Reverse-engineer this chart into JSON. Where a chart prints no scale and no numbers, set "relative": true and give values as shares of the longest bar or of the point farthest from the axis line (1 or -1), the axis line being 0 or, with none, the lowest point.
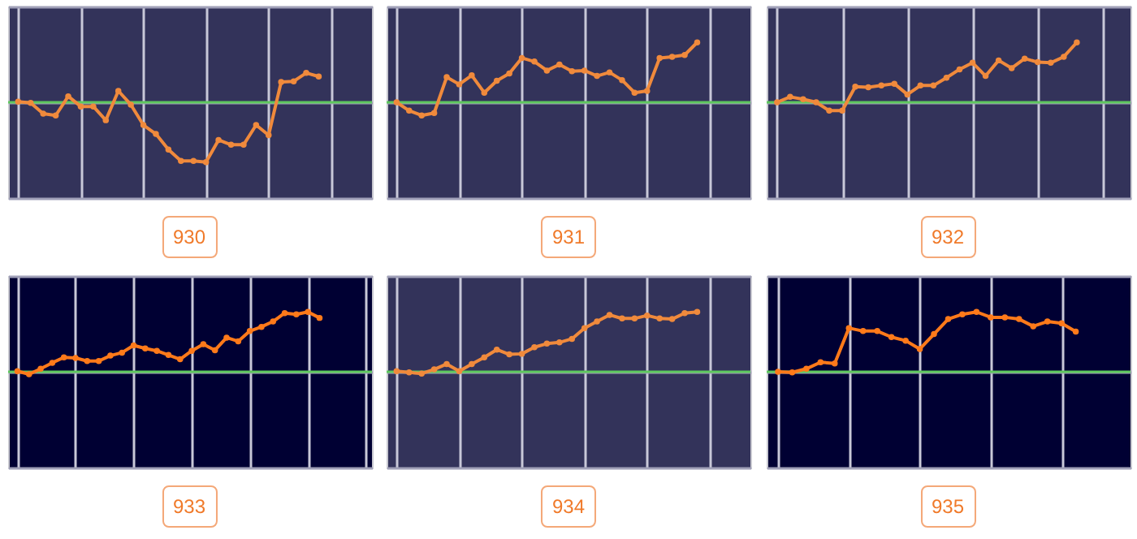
{
  "chart_data": [
    {
      "type": "line",
      "title": "930",
      "relative": true,
      "grid": true,
      "marker": "circle",
      "categories": [
        null,
        null,
        null,
        null,
        null,
        null,
        null,
        null,
        null,
        null,
        null,
        null,
        null,
        null,
        null,
        null,
        null,
        null,
        null,
        null,
        null,
        null,
        null,
        null,
        null
      ],
      "ref_lines": [
        {
          "axis": "y",
          "value": 0,
          "color": "#5ec85e"
        }
      ],
      "series": [
        {
          "color": "#f08a3c",
          "values": [
            0.01,
            -0.01,
            -0.19,
            -0.22,
            0.1,
            -0.07,
            -0.07,
            -0.3,
            0.19,
            -0.04,
            -0.38,
            -0.53,
            -0.79,
            -0.98,
            -0.98,
            -1,
            -0.63,
            -0.71,
            -0.71,
            -0.38,
            -0.55,
            0.34,
            0.35,
            0.49,
            0.43
          ]
        }
      ]
    },
    {
      "type": "line",
      "title": "931",
      "relative": true,
      "grid": true,
      "marker": "circle",
      "categories": [
        null,
        null,
        null,
        null,
        null,
        null,
        null,
        null,
        null,
        null,
        null,
        null,
        null,
        null,
        null,
        null,
        null,
        null,
        null,
        null,
        null,
        null,
        null,
        null,
        null
      ],
      "ref_lines": [
        {
          "axis": "y",
          "value": 0,
          "color": "#5ec85e"
        }
      ],
      "series": [
        {
          "color": "#f08a3c",
          "values": [
            0,
            -0.14,
            -0.22,
            -0.18,
            0.42,
            0.3,
            0.45,
            0.16,
            0.36,
            0.48,
            0.74,
            0.68,
            0.53,
            0.63,
            0.52,
            0.53,
            0.44,
            0.5,
            0.37,
            0.16,
            0.19,
            0.74,
            0.76,
            0.79,
            1
          ]
        }
      ]
    },
    {
      "type": "line",
      "title": "932",
      "relative": true,
      "grid": true,
      "marker": "circle",
      "categories": [
        null,
        null,
        null,
        null,
        null,
        null,
        null,
        null,
        null,
        null,
        null,
        null,
        null,
        null,
        null,
        null,
        null,
        null,
        null,
        null,
        null,
        null,
        null,
        null
      ],
      "ref_lines": [
        {
          "axis": "y",
          "value": 0,
          "color": "#5ec85e"
        }
      ],
      "series": [
        {
          "color": "#f08a3c",
          "values": [
            0,
            0.09,
            0.05,
            0,
            -0.14,
            -0.14,
            0.26,
            0.25,
            0.28,
            0.31,
            0.13,
            0.28,
            0.28,
            0.41,
            0.55,
            0.66,
            0.44,
            0.7,
            0.57,
            0.73,
            0.67,
            0.66,
            0.76,
            1
          ]
        }
      ]
    },
    {
      "type": "line",
      "title": "933",
      "relative": true,
      "grid": true,
      "marker": "circle",
      "categories": [
        null,
        null,
        null,
        null,
        null,
        null,
        null,
        null,
        null,
        null,
        null,
        null,
        null,
        null,
        null,
        null,
        null,
        null,
        null,
        null,
        null,
        null,
        null,
        null,
        null,
        null,
        null
      ],
      "ref_lines": [
        {
          "axis": "y",
          "value": 0,
          "color": "#5ec85e"
        }
      ],
      "series": [
        {
          "color": "#ff7a1a",
          "values": [
            0.01,
            -0.04,
            0.05,
            0.15,
            0.24,
            0.23,
            0.18,
            0.18,
            0.27,
            0.32,
            0.44,
            0.39,
            0.35,
            0.28,
            0.21,
            0.35,
            0.46,
            0.36,
            0.57,
            0.51,
            0.68,
            0.75,
            0.84,
            0.98,
            0.96,
            1,
            0.9
          ]
        }
      ]
    },
    {
      "type": "line",
      "title": "934",
      "relative": true,
      "grid": true,
      "marker": "circle",
      "categories": [
        null,
        null,
        null,
        null,
        null,
        null,
        null,
        null,
        null,
        null,
        null,
        null,
        null,
        null,
        null,
        null,
        null,
        null,
        null,
        null,
        null,
        null,
        null,
        null,
        null
      ],
      "ref_lines": [
        {
          "axis": "y",
          "value": 0,
          "color": "#5ec85e"
        }
      ],
      "series": [
        {
          "color": "#f08a3c",
          "values": [
            0.01,
            -0.01,
            -0.03,
            0.04,
            0.13,
            0.01,
            0.13,
            0.24,
            0.37,
            0.29,
            0.3,
            0.41,
            0.47,
            0.49,
            0.55,
            0.73,
            0.84,
            0.95,
            0.89,
            0.89,
            0.94,
            0.89,
            0.88,
            0.98,
            1
          ]
        }
      ]
    },
    {
      "type": "line",
      "title": "935",
      "relative": true,
      "grid": true,
      "marker": "circle",
      "categories": [
        null,
        null,
        null,
        null,
        null,
        null,
        null,
        null,
        null,
        null,
        null,
        null,
        null,
        null,
        null,
        null,
        null,
        null,
        null,
        null,
        null,
        null
      ],
      "ref_lines": [
        {
          "axis": "y",
          "value": 0,
          "color": "#5ec85e"
        }
      ],
      "series": [
        {
          "color": "#ff7a1a",
          "values": [
            0,
            -0.01,
            0.05,
            0.16,
            0.14,
            0.73,
            0.68,
            0.68,
            0.58,
            0.52,
            0.38,
            0.63,
            0.88,
            0.96,
            1,
            0.91,
            0.91,
            0.88,
            0.76,
            0.84,
            0.81,
            0.67
          ]
        }
      ]
    }
  ]
}
